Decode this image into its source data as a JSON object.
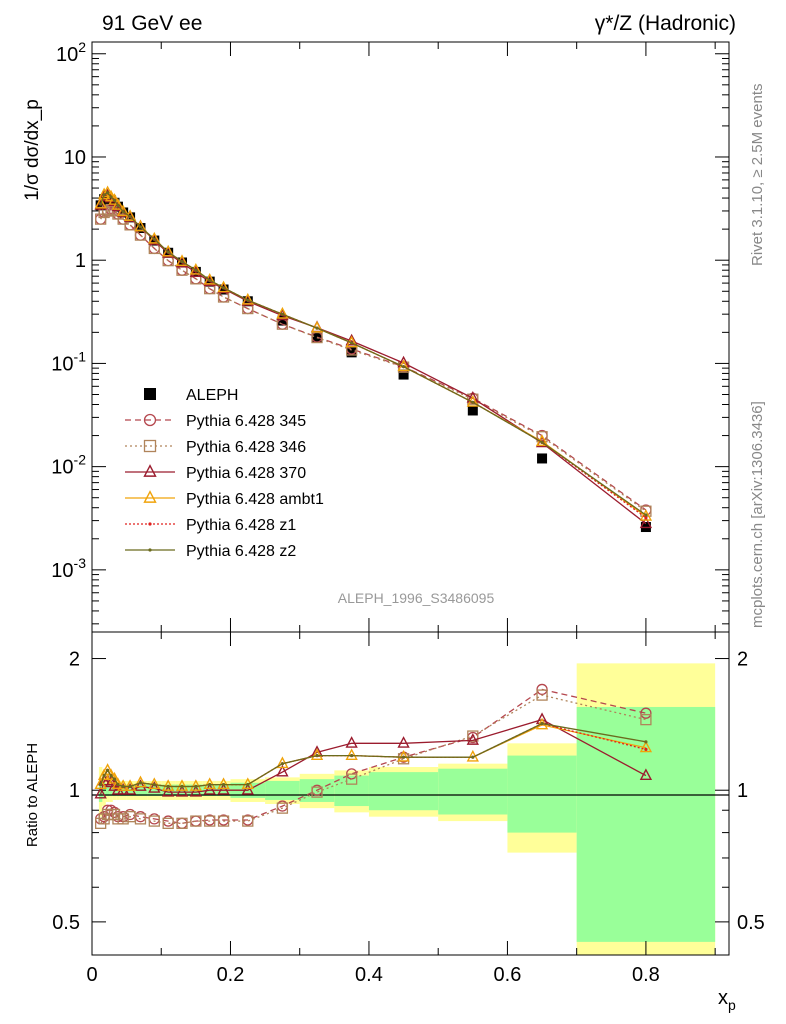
{
  "header": {
    "left": "91 GeV ee",
    "right": "γ*/Z (Hadronic)"
  },
  "side_texts": {
    "rivet": "Rivet 3.1.10, ≥ 2.5M events",
    "mcplots": "mcplots.cern.ch [arXiv:1306.3436]"
  },
  "analysis_label": "ALEPH_1996_S3486095",
  "colors": {
    "data": "#000000",
    "p345": "#b5474e",
    "p346": "#b0845a",
    "p370": "#9b1c2e",
    "ambt1": "#f0a30a",
    "z1": "#e0201e",
    "z2": "#6b6b1e",
    "band_inner": "#99ff99",
    "band_outer": "#ffff99"
  },
  "chart_data": [
    {
      "type": "line",
      "title": "",
      "xlabel": "x_p",
      "ylabel": "1/σ dσ/dx_p",
      "yscale": "log",
      "xlim": [
        0,
        0.92
      ],
      "ylim": [
        0.00025,
        130
      ],
      "ytick_labels": [
        "10^-3",
        "10^-2",
        "10^-1",
        "1",
        "10",
        "10^2"
      ],
      "legend_position": "lower-left",
      "x": [
        0.0125,
        0.0175,
        0.0225,
        0.0275,
        0.0325,
        0.0375,
        0.045,
        0.055,
        0.07,
        0.09,
        0.11,
        0.13,
        0.15,
        0.17,
        0.19,
        0.225,
        0.275,
        0.325,
        0.375,
        0.45,
        0.55,
        0.65,
        0.8
      ],
      "series": [
        {
          "name": "ALEPH",
          "key": "data",
          "values": [
            3.4,
            3.9,
            4.0,
            3.8,
            3.6,
            3.3,
            2.9,
            2.6,
            2.05,
            1.55,
            1.18,
            0.95,
            0.77,
            0.62,
            0.52,
            0.4,
            0.26,
            0.18,
            0.128,
            0.078,
            0.035,
            0.012,
            0.0026
          ]
        },
        {
          "name": "Pythia 6.428 345",
          "key": "p345",
          "values": [
            2.5,
            2.9,
            3.0,
            3.1,
            3.0,
            2.8,
            2.5,
            2.2,
            1.75,
            1.3,
            0.99,
            0.8,
            0.66,
            0.53,
            0.44,
            0.34,
            0.24,
            0.18,
            0.138,
            0.093,
            0.046,
            0.02,
            0.0038
          ]
        },
        {
          "name": "Pythia 6.428 346",
          "key": "p346",
          "values": [
            2.5,
            2.9,
            3.0,
            3.1,
            3.0,
            2.8,
            2.5,
            2.2,
            1.75,
            1.3,
            0.99,
            0.8,
            0.66,
            0.53,
            0.44,
            0.34,
            0.24,
            0.178,
            0.135,
            0.092,
            0.045,
            0.0195,
            0.0037
          ]
        },
        {
          "name": "Pythia 6.428 370",
          "key": "p370",
          "values": [
            3.4,
            4.1,
            4.2,
            4.0,
            3.7,
            3.3,
            2.9,
            2.6,
            2.1,
            1.56,
            1.17,
            0.94,
            0.76,
            0.62,
            0.53,
            0.4,
            0.29,
            0.222,
            0.165,
            0.101,
            0.046,
            0.017,
            0.0028
          ]
        },
        {
          "name": "Pythia 6.428 ambt1",
          "key": "ambt1",
          "values": [
            3.5,
            4.3,
            4.5,
            4.1,
            3.8,
            3.4,
            2.95,
            2.65,
            2.1,
            1.6,
            1.2,
            0.97,
            0.8,
            0.64,
            0.54,
            0.41,
            0.3,
            0.22,
            0.158,
            0.093,
            0.042,
            0.0175,
            0.0033
          ]
        },
        {
          "name": "Pythia 6.428 z1",
          "key": "z1",
          "values": [
            3.5,
            4.3,
            4.5,
            4.1,
            3.8,
            3.4,
            2.95,
            2.65,
            2.1,
            1.6,
            1.2,
            0.97,
            0.8,
            0.64,
            0.54,
            0.41,
            0.3,
            0.22,
            0.158,
            0.093,
            0.042,
            0.0172,
            0.0032
          ]
        },
        {
          "name": "Pythia 6.428 z2",
          "key": "z2",
          "values": [
            3.5,
            4.3,
            4.5,
            4.1,
            3.8,
            3.4,
            2.95,
            2.65,
            2.1,
            1.6,
            1.2,
            0.97,
            0.8,
            0.64,
            0.54,
            0.41,
            0.3,
            0.22,
            0.158,
            0.093,
            0.042,
            0.0172,
            0.0034
          ]
        }
      ]
    },
    {
      "type": "line",
      "title": "",
      "xlabel": "x_p",
      "ylabel": "Ratio to ALEPH",
      "yscale": "log",
      "xlim": [
        0,
        0.92
      ],
      "ylim": [
        0.42,
        2.3
      ],
      "ytick_labels": [
        "0.5",
        "1",
        "2"
      ],
      "x_tick_labels": [
        "0",
        "0.2",
        "0.4",
        "0.6",
        "0.8"
      ],
      "x": [
        0.0125,
        0.0175,
        0.0225,
        0.0275,
        0.0325,
        0.0375,
        0.045,
        0.055,
        0.07,
        0.09,
        0.11,
        0.13,
        0.15,
        0.17,
        0.19,
        0.225,
        0.275,
        0.325,
        0.375,
        0.45,
        0.55,
        0.65,
        0.8
      ],
      "bands": {
        "edges": [
          0.01,
          0.015,
          0.02,
          0.025,
          0.03,
          0.035,
          0.04,
          0.05,
          0.06,
          0.08,
          0.1,
          0.12,
          0.14,
          0.16,
          0.18,
          0.2,
          0.25,
          0.3,
          0.35,
          0.4,
          0.5,
          0.6,
          0.7,
          0.9
        ],
        "inner": [
          0.06,
          0.04,
          0.03,
          0.03,
          0.03,
          0.03,
          0.03,
          0.03,
          0.03,
          0.03,
          0.03,
          0.03,
          0.03,
          0.03,
          0.03,
          0.04,
          0.05,
          0.06,
          0.08,
          0.1,
          0.12,
          0.2,
          0.55
        ],
        "outer": [
          0.13,
          0.08,
          0.06,
          0.06,
          0.05,
          0.05,
          0.05,
          0.05,
          0.05,
          0.05,
          0.05,
          0.05,
          0.05,
          0.05,
          0.05,
          0.06,
          0.07,
          0.09,
          0.11,
          0.13,
          0.15,
          0.28,
          0.95
        ]
      },
      "series": [
        {
          "name": "Pythia 6.428 345",
          "key": "p345",
          "values": [
            0.86,
            0.87,
            0.9,
            0.9,
            0.89,
            0.87,
            0.87,
            0.88,
            0.87,
            0.86,
            0.85,
            0.84,
            0.85,
            0.855,
            0.855,
            0.855,
            0.92,
            1.0,
            1.09,
            1.19,
            1.32,
            1.7,
            1.5
          ]
        },
        {
          "name": "Pythia 6.428 346",
          "key": "p346",
          "values": [
            0.84,
            0.86,
            0.88,
            0.88,
            0.88,
            0.86,
            0.86,
            0.87,
            0.86,
            0.85,
            0.84,
            0.84,
            0.85,
            0.85,
            0.85,
            0.85,
            0.91,
            0.99,
            1.06,
            1.18,
            1.33,
            1.65,
            1.45
          ]
        },
        {
          "name": "Pythia 6.428 370",
          "key": "p370",
          "values": [
            0.98,
            1.05,
            1.05,
            1.04,
            1.02,
            1.0,
            1.0,
            1.0,
            1.02,
            1.01,
            0.99,
            0.99,
            0.99,
            1.0,
            1.0,
            1.0,
            1.1,
            1.22,
            1.28,
            1.28,
            1.3,
            1.45,
            1.08
          ]
        },
        {
          "name": "Pythia 6.428 ambt1",
          "key": "ambt1",
          "values": [
            1.03,
            1.08,
            1.11,
            1.08,
            1.06,
            1.03,
            1.02,
            1.02,
            1.04,
            1.03,
            1.02,
            1.02,
            1.02,
            1.03,
            1.03,
            1.03,
            1.15,
            1.2,
            1.2,
            1.19,
            1.19,
            1.41,
            1.25
          ]
        },
        {
          "name": "Pythia 6.428 z1",
          "key": "z1",
          "values": [
            1.03,
            1.08,
            1.11,
            1.08,
            1.06,
            1.03,
            1.02,
            1.02,
            1.04,
            1.03,
            1.02,
            1.02,
            1.02,
            1.03,
            1.03,
            1.03,
            1.15,
            1.2,
            1.2,
            1.19,
            1.19,
            1.42,
            1.24
          ]
        },
        {
          "name": "Pythia 6.428 z2",
          "key": "z2",
          "values": [
            1.03,
            1.08,
            1.11,
            1.08,
            1.06,
            1.03,
            1.02,
            1.02,
            1.04,
            1.03,
            1.02,
            1.02,
            1.02,
            1.03,
            1.03,
            1.03,
            1.15,
            1.2,
            1.2,
            1.19,
            1.19,
            1.42,
            1.29
          ]
        }
      ]
    }
  ]
}
